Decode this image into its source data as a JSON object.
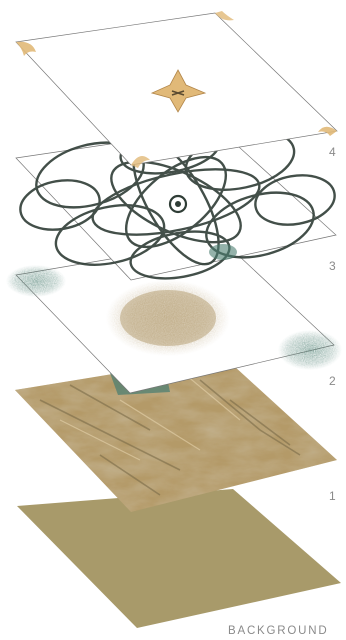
{
  "layers": [
    {
      "label": "4",
      "content": "white layer with corner ornaments and central star motif"
    },
    {
      "label": "3",
      "content": "dark green interlocking circle lattice"
    },
    {
      "label": "2",
      "content": "teal spray corners and tan diffuse center blob"
    },
    {
      "label": "1",
      "content": "tan stone texture"
    },
    {
      "label": "BACKGROUND",
      "content": "solid olive-tan fill"
    }
  ],
  "colors": {
    "background_fill": "#a89a6a",
    "stone_base": "#b49a68",
    "stone_light": "#d8c39a",
    "stone_dark": "#7a6a48",
    "teal": "#4d7f72",
    "tan_blob": "#b8a279",
    "lattice": "#2f3d36",
    "ornament_gold": "#e1b978",
    "outline": "#777777",
    "label_gray": "#8a8a8a"
  }
}
